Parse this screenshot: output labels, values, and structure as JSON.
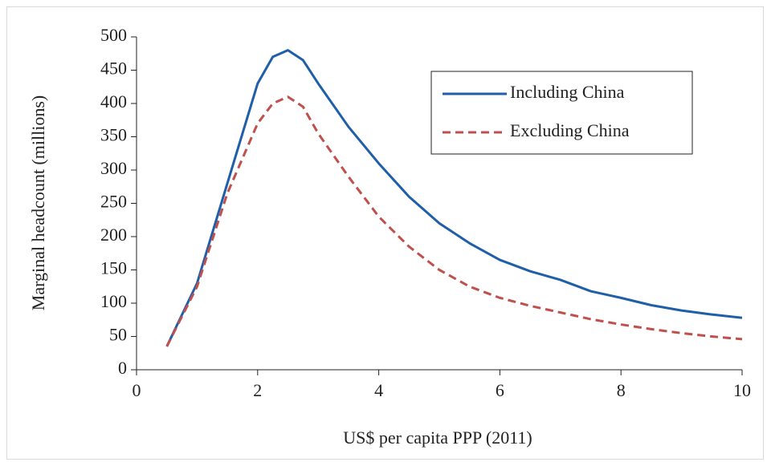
{
  "chart_data": {
    "type": "line",
    "x_label": "US$ per capita PPP (2011)",
    "y_label": "Marginal headcount (millions)",
    "x": [
      0.5,
      1,
      1.5,
      2,
      2.25,
      2.5,
      2.75,
      3,
      3.5,
      4,
      4.5,
      5,
      5.5,
      6,
      6.5,
      7,
      7.5,
      8,
      8.5,
      9,
      9.5,
      10
    ],
    "series": [
      {
        "name": "Including China",
        "color": "#1f5ea8",
        "dash": false,
        "values": [
          35,
          130,
          280,
          430,
          470,
          480,
          465,
          430,
          365,
          310,
          260,
          220,
          190,
          165,
          148,
          135,
          118,
          108,
          97,
          89,
          83,
          78
        ]
      },
      {
        "name": "Excluding China",
        "color": "#c0504d",
        "dash": true,
        "values": [
          35,
          125,
          265,
          370,
          400,
          410,
          395,
          355,
          290,
          230,
          185,
          150,
          125,
          108,
          96,
          86,
          76,
          68,
          61,
          55,
          50,
          46
        ]
      }
    ],
    "xlim": [
      0,
      10
    ],
    "xticks": [
      0,
      2,
      4,
      6,
      8,
      10
    ],
    "ylim": [
      0,
      500
    ],
    "yticks": [
      0,
      50,
      100,
      150,
      200,
      250,
      300,
      350,
      400,
      450,
      500
    ],
    "legend": "upper right"
  }
}
